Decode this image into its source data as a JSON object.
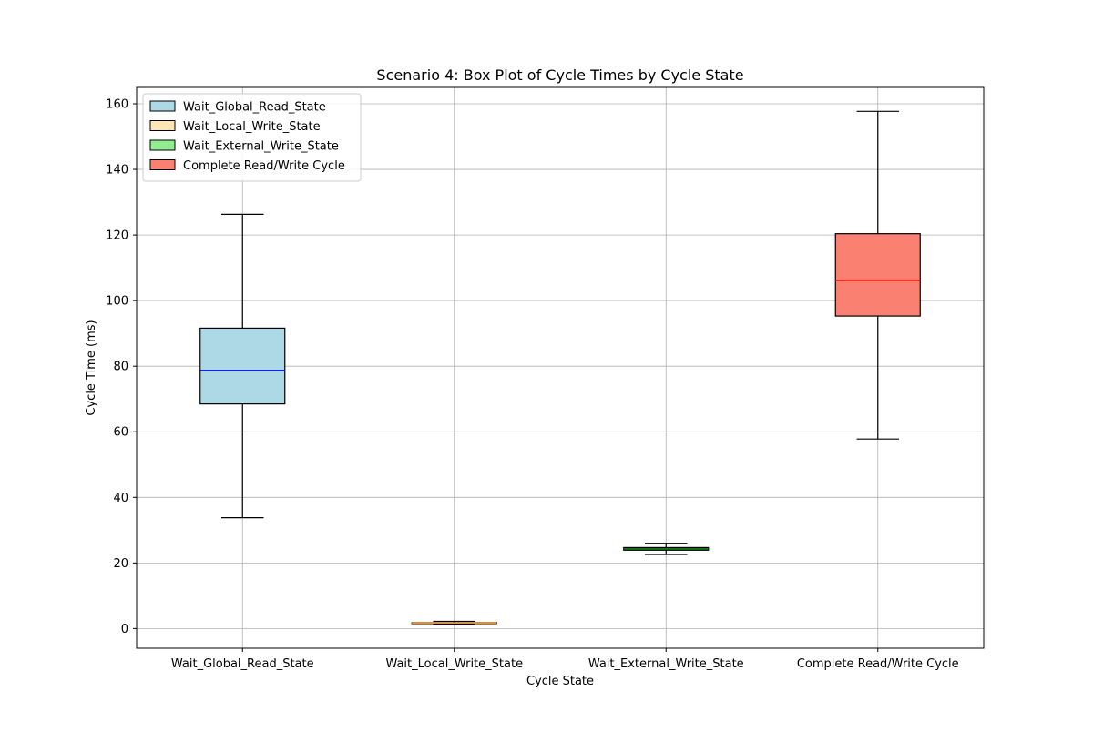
{
  "chart_data": {
    "type": "box",
    "title": "Scenario 4: Box Plot of Cycle Times by Cycle State",
    "xlabel": "Cycle State",
    "ylabel": "Cycle Time (ms)",
    "ylim": [
      -6,
      165
    ],
    "yticks": [
      0,
      20,
      40,
      60,
      80,
      100,
      120,
      140,
      160
    ],
    "grid": true,
    "legend_position": "top-left",
    "categories": [
      "Wait_Global_Read_State",
      "Wait_Local_Write_State",
      "Wait_External_Write_State",
      "Complete Read/Write Cycle"
    ],
    "series": [
      {
        "name": "Wait_Global_Read_State",
        "whisker_low": 33.8,
        "q1": 68.5,
        "median": 78.7,
        "q3": 91.6,
        "whisker_high": 126.3,
        "fill": "#add8e6",
        "median_color": "#0000ff"
      },
      {
        "name": "Wait_Local_Write_State",
        "whisker_low": 1.3,
        "q1": 1.6,
        "median": 1.7,
        "q3": 1.8,
        "whisker_high": 2.2,
        "fill": "#ffe4b5",
        "median_color": "#ff8c00"
      },
      {
        "name": "Wait_External_Write_State",
        "whisker_low": 22.6,
        "q1": 23.9,
        "median": 24.3,
        "q3": 24.7,
        "whisker_high": 26.0,
        "fill": "#90ee90",
        "median_color": "#006400"
      },
      {
        "name": "Complete Read/Write Cycle",
        "whisker_low": 57.8,
        "q1": 95.3,
        "median": 106.2,
        "q3": 120.4,
        "whisker_high": 157.7,
        "fill": "#fa8072",
        "median_color": "#ff0000"
      }
    ]
  }
}
